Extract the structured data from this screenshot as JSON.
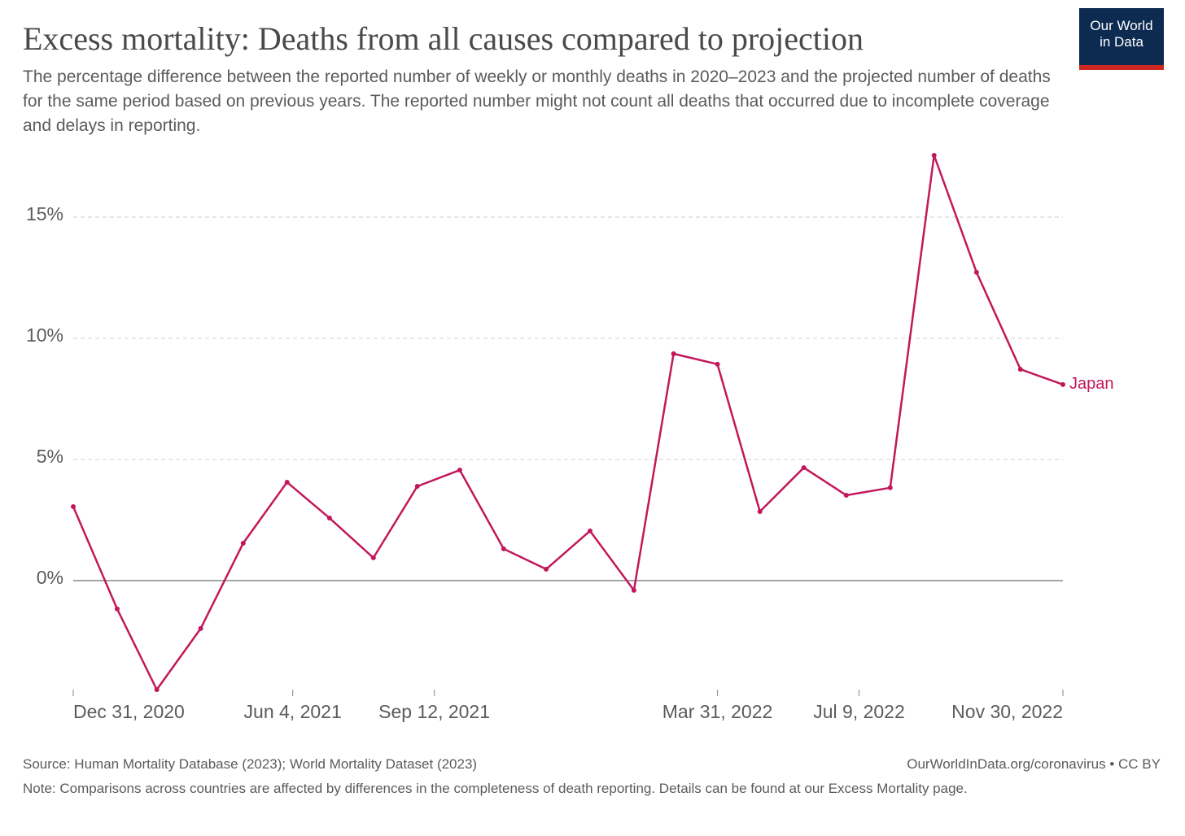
{
  "chart_data": {
    "type": "line",
    "title": "Excess mortality: Deaths from all causes compared to projection",
    "subtitle": "The percentage difference between the reported number of weekly or monthly deaths in 2020–2023 and the projected number of deaths for the same period based on previous years. The reported number might not count all deaths that occurred due to incomplete coverage and delays in reporting.",
    "logo": "Our World in Data",
    "source": "Source: Human Mortality Database (2023); World Mortality Dataset (2023)",
    "url": "OurWorldInData.org/coronavirus • CC BY",
    "note": "Note: Comparisons across countries are affected by differences in the completeness of death reporting. Details can be found at our Excess Mortality page.",
    "x": [
      "2020-12-31",
      "2021-01-31",
      "2021-02-28",
      "2021-03-31",
      "2021-04-30",
      "2021-05-31",
      "2021-06-30",
      "2021-07-31",
      "2021-08-31",
      "2021-09-30",
      "2021-10-31",
      "2021-11-30",
      "2021-12-31",
      "2022-01-31",
      "2022-02-28",
      "2022-03-31",
      "2022-04-30",
      "2022-05-31",
      "2022-06-30",
      "2022-07-31",
      "2022-08-31",
      "2022-09-30",
      "2022-10-31",
      "2022-11-30"
    ],
    "series": [
      {
        "name": "Japan",
        "color": "#c2185b",
        "values": [
          3.05,
          -1.17,
          -4.5,
          -1.98,
          1.54,
          4.06,
          2.58,
          0.94,
          3.89,
          4.56,
          1.31,
          0.47,
          2.05,
          -0.4,
          9.36,
          8.93,
          2.85,
          4.66,
          3.52,
          3.83,
          17.55,
          12.72,
          8.72,
          8.09
        ]
      }
    ],
    "xlim": [
      "2020-12-31",
      "2022-11-30"
    ],
    "xticks": [
      {
        "value": "2020-12-31",
        "label": "Dec 31, 2020"
      },
      {
        "value": "2021-06-04",
        "label": "Jun 4, 2021"
      },
      {
        "value": "2021-09-12",
        "label": "Sep 12, 2021"
      },
      {
        "value": "2022-03-31",
        "label": "Mar 31, 2022"
      },
      {
        "value": "2022-07-09",
        "label": "Jul 9, 2022"
      },
      {
        "value": "2022-11-30",
        "label": "Nov 30, 2022"
      }
    ],
    "ylim": [
      -4.5,
      17.6
    ],
    "yticks": [
      {
        "value": 0,
        "label": "0%"
      },
      {
        "value": 5,
        "label": "5%"
      },
      {
        "value": 10,
        "label": "10%"
      },
      {
        "value": 15,
        "label": "15%"
      }
    ],
    "grid": true
  }
}
